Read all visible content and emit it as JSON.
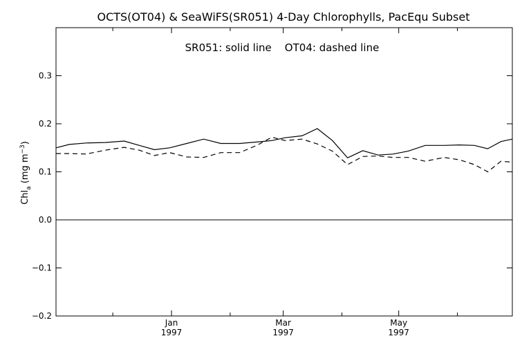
{
  "chart_data": {
    "type": "line",
    "title": "OCTS(OT04) & SeaWiFS(SR051) 4-Day Chlorophylls, PacEqu Subset",
    "legend_text": "SR051: solid line    OT04: dashed line",
    "ylabel": {
      "main": "Chl",
      "subscript": "a",
      "units_open": " (mg m",
      "units_sup": "−3",
      "units_close": ")"
    },
    "xlim": [
      "1996-11-01",
      "1997-06-30"
    ],
    "ylim": [
      -0.2,
      0.4
    ],
    "yticks": [
      {
        "value": -0.2,
        "label": "−0.2"
      },
      {
        "value": -0.1,
        "label": "−0.1"
      },
      {
        "value": 0.0,
        "label": "0.0"
      },
      {
        "value": 0.1,
        "label": "0.1"
      },
      {
        "value": 0.2,
        "label": "0.2"
      },
      {
        "value": 0.3,
        "label": "0.3"
      }
    ],
    "xticks_major": [
      {
        "date": "1997-01-01",
        "month": "Jan",
        "year": "1997"
      },
      {
        "date": "1997-03-01",
        "month": "Mar",
        "year": "1997"
      },
      {
        "date": "1997-05-01",
        "month": "May",
        "year": "1997"
      }
    ],
    "xticks_minor": [
      "1996-12-01",
      "1997-02-01",
      "1997-04-01",
      "1997-06-01"
    ],
    "zero_line": 0.0,
    "x": [
      "1996-11-01",
      "1996-11-08",
      "1996-11-17",
      "1996-11-27",
      "1996-12-07",
      "1996-12-15",
      "1996-12-23",
      "1996-12-31",
      "1997-01-09",
      "1997-01-18",
      "1997-01-27",
      "1997-02-06",
      "1997-02-15",
      "1997-02-23",
      "1997-03-02",
      "1997-03-11",
      "1997-03-19",
      "1997-03-27",
      "1997-04-04",
      "1997-04-12",
      "1997-04-20",
      "1997-04-28",
      "1997-05-06",
      "1997-05-15",
      "1997-05-25",
      "1997-06-02",
      "1997-06-10",
      "1997-06-17",
      "1997-06-24",
      "1997-06-30"
    ],
    "series": [
      {
        "name": "SR051",
        "style": "solid",
        "values": [
          0.15,
          0.157,
          0.16,
          0.161,
          0.164,
          0.155,
          0.146,
          0.15,
          0.159,
          0.168,
          0.159,
          0.159,
          0.162,
          0.165,
          0.171,
          0.175,
          0.19,
          0.165,
          0.129,
          0.144,
          0.135,
          0.137,
          0.143,
          0.155,
          0.155,
          0.156,
          0.155,
          0.148,
          0.163,
          0.168
        ]
      },
      {
        "name": "OT04",
        "style": "dashed",
        "values": [
          0.138,
          0.138,
          0.137,
          0.145,
          0.151,
          0.145,
          0.134,
          0.14,
          0.131,
          0.13,
          0.14,
          0.14,
          0.155,
          0.172,
          0.165,
          0.168,
          0.158,
          0.143,
          0.115,
          0.132,
          0.133,
          0.13,
          0.13,
          0.122,
          0.13,
          0.125,
          0.115,
          0.1,
          0.122,
          0.12
        ]
      }
    ]
  }
}
